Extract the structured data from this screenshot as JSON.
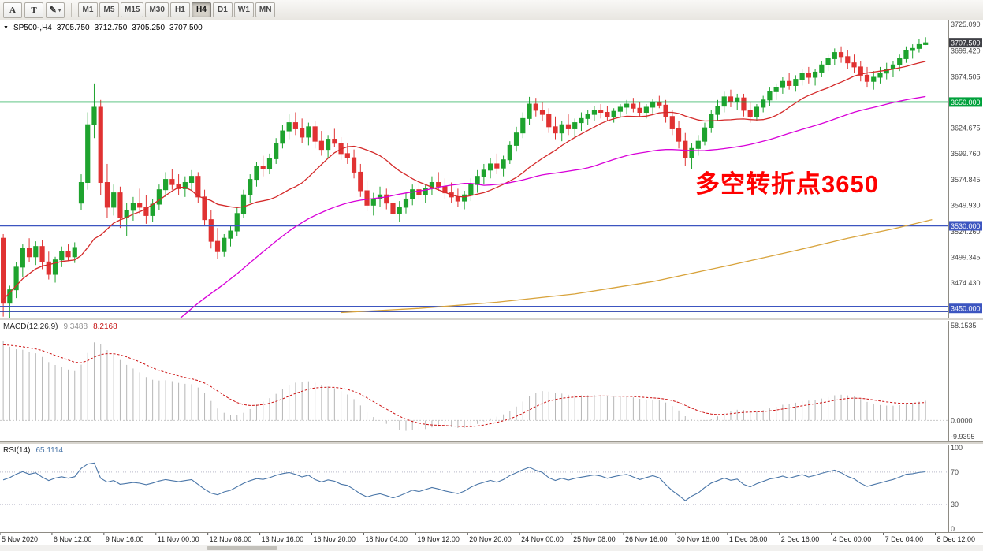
{
  "toolbar": {
    "tools": [
      {
        "label": "A"
      },
      {
        "label": "T"
      },
      {
        "label": "✎"
      }
    ],
    "crayon_caret": "▾",
    "timeframes": [
      "M1",
      "M5",
      "M15",
      "M30",
      "H1",
      "H4",
      "D1",
      "W1",
      "MN"
    ],
    "active_timeframe": "H4"
  },
  "symbol_info": {
    "collapse_icon": "▼",
    "symbol": "SP500-,H4",
    "open": "3705.750",
    "high": "3712.750",
    "low": "3705.250",
    "close": "3707.500"
  },
  "annotation": {
    "text": "多空转折点3650",
    "color": "#ff0000"
  },
  "indicators": {
    "macd": {
      "label": "MACD(12,26,9)",
      "value": "9.3488",
      "signal": "8.2168",
      "axis": [
        "58.1535",
        "0.0000",
        "-9.9395"
      ]
    },
    "rsi": {
      "label": "RSI(14)",
      "value": "65.1114",
      "axis": [
        "100",
        "70",
        "30",
        "0"
      ],
      "levels": [
        70,
        30
      ]
    }
  },
  "price_axis": {
    "labels": [
      {
        "text": "3725.090",
        "value": 3725.09
      },
      {
        "text": "3699.420",
        "value": 3699.42
      },
      {
        "text": "3674.505",
        "value": 3674.505
      },
      {
        "text": "3624.675",
        "value": 3624.675
      },
      {
        "text": "3599.760",
        "value": 3599.76
      },
      {
        "text": "3574.845",
        "value": 3574.845
      },
      {
        "text": "3549.930",
        "value": 3549.93
      },
      {
        "text": "3524.260",
        "value": 3524.26
      },
      {
        "text": "3499.345",
        "value": 3499.345
      },
      {
        "text": "3474.430",
        "value": 3474.43
      }
    ],
    "tags": [
      {
        "text": "3707.500",
        "value": 3707.5,
        "bg": "#3f4046"
      },
      {
        "text": "3650.000",
        "value": 3650,
        "bg": "#00a13c"
      },
      {
        "text": "3530.000",
        "value": 3530,
        "bg": "#3c55c0"
      },
      {
        "text": "3450.000",
        "value": 3450,
        "bg": "#3c55c0"
      }
    ]
  },
  "chart_data": {
    "type": "candlestick",
    "title": "SP500- H4",
    "symbol": "SP500-",
    "timeframe": "H4",
    "y_range": [
      3441,
      3729
    ],
    "visible_slots": 146,
    "hlines": [
      {
        "value": 3650,
        "color": "#00a13c",
        "width": 1.6
      },
      {
        "value": 3530,
        "color": "#3c55c0",
        "width": 1.4
      },
      {
        "value": 3452,
        "color": "#3c55c0",
        "width": 1.2
      },
      {
        "value": 3447,
        "color": "#2a3fa8",
        "width": 1.4
      }
    ],
    "time_ticks": [
      {
        "i": 0,
        "label": "5 Nov 2020"
      },
      {
        "i": 8,
        "label": "6 Nov 12:00"
      },
      {
        "i": 16,
        "label": "9 Nov 16:00"
      },
      {
        "i": 24,
        "label": "11 Nov 00:00"
      },
      {
        "i": 32,
        "label": "12 Nov 08:00"
      },
      {
        "i": 40,
        "label": "13 Nov 16:00"
      },
      {
        "i": 48,
        "label": "16 Nov 20:00"
      },
      {
        "i": 56,
        "label": "18 Nov 04:00"
      },
      {
        "i": 64,
        "label": "19 Nov 12:00"
      },
      {
        "i": 72,
        "label": "20 Nov 20:00"
      },
      {
        "i": 80,
        "label": "24 Nov 00:00"
      },
      {
        "i": 88,
        "label": "25 Nov 08:00"
      },
      {
        "i": 96,
        "label": "26 Nov 16:00"
      },
      {
        "i": 104,
        "label": "30 Nov 16:00"
      },
      {
        "i": 112,
        "label": "1 Dec 08:00"
      },
      {
        "i": 120,
        "label": "2 Dec 16:00"
      },
      {
        "i": 128,
        "label": "4 Dec 00:00"
      },
      {
        "i": 136,
        "label": "7 Dec 04:00"
      },
      {
        "i": 144,
        "label": "8 Dec 12:00"
      }
    ],
    "overlays": {
      "ma_fast": {
        "period": 16,
        "color": "#d42a2a"
      },
      "ma_mid": {
        "period": 60,
        "color": "#d800d8"
      },
      "ma_slow": {
        "color": "#d8a33c",
        "points": [
          [
            52,
            3446
          ],
          [
            64,
            3450
          ],
          [
            76,
            3456
          ],
          [
            88,
            3464
          ],
          [
            100,
            3476
          ],
          [
            112,
            3492
          ],
          [
            122,
            3506
          ],
          [
            130,
            3518
          ],
          [
            137,
            3527
          ],
          [
            143,
            3536
          ]
        ]
      }
    },
    "macd_axis": [
      58.1535,
      -9.9395
    ],
    "colors": {
      "up": "#1ea32e",
      "down": "#e03232",
      "ma_fast": "#d42a2a",
      "ma_mid": "#d800d8",
      "ma_slow": "#d8a33c",
      "macd_hist": "#b6b6b6",
      "macd_signal": "#cc1111",
      "rsi_line": "#4a76a8"
    },
    "pre_window_closes": [
      3400,
      3392,
      3384,
      3376,
      3368,
      3360,
      3352,
      3344,
      3336,
      3328,
      3318,
      3308,
      3296,
      3284,
      3272,
      3262,
      3255,
      3250,
      3246,
      3242,
      3240,
      3238,
      3236,
      3235,
      3238,
      3244,
      3252,
      3262,
      3274,
      3288,
      3304,
      3322,
      3342,
      3362,
      3382,
      3402,
      3420,
      3436,
      3450,
      3462,
      3472,
      3481,
      3489,
      3496,
      3502,
      3506,
      3510,
      3513
    ],
    "candles": [
      [
        3518,
        3522,
        3442,
        3455
      ],
      [
        3455,
        3472,
        3438,
        3468
      ],
      [
        3468,
        3495,
        3460,
        3490
      ],
      [
        3490,
        3512,
        3480,
        3508
      ],
      [
        3508,
        3518,
        3495,
        3500
      ],
      [
        3500,
        3515,
        3492,
        3510
      ],
      [
        3510,
        3516,
        3488,
        3495
      ],
      [
        3495,
        3505,
        3478,
        3483
      ],
      [
        3483,
        3500,
        3475,
        3497
      ],
      [
        3497,
        3510,
        3490,
        3505
      ],
      [
        3505,
        3512,
        3496,
        3500
      ],
      [
        3500,
        3514,
        3494,
        3509
      ],
      [
        3552,
        3580,
        3545,
        3572
      ],
      [
        3572,
        3640,
        3565,
        3628
      ],
      [
        3628,
        3668,
        3615,
        3645
      ],
      [
        3645,
        3652,
        3560,
        3572
      ],
      [
        3572,
        3590,
        3538,
        3548
      ],
      [
        3548,
        3570,
        3540,
        3562
      ],
      [
        3562,
        3568,
        3528,
        3538
      ],
      [
        3538,
        3552,
        3520,
        3545
      ],
      [
        3545,
        3558,
        3535,
        3552
      ],
      [
        3552,
        3566,
        3542,
        3548
      ],
      [
        3548,
        3560,
        3532,
        3540
      ],
      [
        3540,
        3556,
        3534,
        3551
      ],
      [
        3551,
        3570,
        3545,
        3565
      ],
      [
        3565,
        3582,
        3558,
        3575
      ],
      [
        3575,
        3585,
        3565,
        3570
      ],
      [
        3570,
        3580,
        3560,
        3566
      ],
      [
        3566,
        3578,
        3558,
        3572
      ],
      [
        3572,
        3584,
        3564,
        3578
      ],
      [
        3578,
        3582,
        3552,
        3558
      ],
      [
        3558,
        3565,
        3530,
        3536
      ],
      [
        3536,
        3545,
        3508,
        3515
      ],
      [
        3515,
        3528,
        3498,
        3505
      ],
      [
        3505,
        3522,
        3500,
        3518
      ],
      [
        3518,
        3530,
        3510,
        3525
      ],
      [
        3525,
        3548,
        3520,
        3542
      ],
      [
        3542,
        3565,
        3538,
        3560
      ],
      [
        3560,
        3580,
        3552,
        3575
      ],
      [
        3575,
        3592,
        3568,
        3588
      ],
      [
        3588,
        3598,
        3578,
        3585
      ],
      [
        3585,
        3600,
        3580,
        3595
      ],
      [
        3595,
        3615,
        3590,
        3610
      ],
      [
        3610,
        3628,
        3605,
        3622
      ],
      [
        3622,
        3638,
        3614,
        3630
      ],
      [
        3630,
        3640,
        3618,
        3624
      ],
      [
        3624,
        3634,
        3610,
        3616
      ],
      [
        3616,
        3630,
        3608,
        3626
      ],
      [
        3626,
        3632,
        3605,
        3612
      ],
      [
        3612,
        3622,
        3598,
        3604
      ],
      [
        3604,
        3618,
        3596,
        3614
      ],
      [
        3614,
        3624,
        3606,
        3610
      ],
      [
        3610,
        3616,
        3594,
        3600
      ],
      [
        3600,
        3610,
        3590,
        3596
      ],
      [
        3596,
        3604,
        3576,
        3582
      ],
      [
        3582,
        3590,
        3558,
        3564
      ],
      [
        3564,
        3574,
        3544,
        3550
      ],
      [
        3550,
        3562,
        3540,
        3556
      ],
      [
        3556,
        3568,
        3548,
        3560
      ],
      [
        3560,
        3566,
        3546,
        3552
      ],
      [
        3552,
        3560,
        3536,
        3542
      ],
      [
        3542,
        3554,
        3534,
        3548
      ],
      [
        3548,
        3562,
        3542,
        3556
      ],
      [
        3556,
        3570,
        3550,
        3565
      ],
      [
        3565,
        3574,
        3556,
        3560
      ],
      [
        3560,
        3570,
        3552,
        3566
      ],
      [
        3566,
        3578,
        3560,
        3572
      ],
      [
        3572,
        3582,
        3564,
        3568
      ],
      [
        3568,
        3576,
        3556,
        3562
      ],
      [
        3562,
        3572,
        3552,
        3558
      ],
      [
        3558,
        3566,
        3548,
        3554
      ],
      [
        3554,
        3564,
        3546,
        3560
      ],
      [
        3560,
        3576,
        3554,
        3570
      ],
      [
        3570,
        3584,
        3562,
        3578
      ],
      [
        3578,
        3590,
        3570,
        3584
      ],
      [
        3584,
        3596,
        3576,
        3590
      ],
      [
        3590,
        3600,
        3580,
        3586
      ],
      [
        3586,
        3598,
        3578,
        3594
      ],
      [
        3594,
        3612,
        3590,
        3608
      ],
      [
        3608,
        3626,
        3602,
        3620
      ],
      [
        3620,
        3640,
        3615,
        3634
      ],
      [
        3634,
        3655,
        3628,
        3648
      ],
      [
        3648,
        3654,
        3636,
        3642
      ],
      [
        3642,
        3650,
        3632,
        3638
      ],
      [
        3638,
        3644,
        3620,
        3626
      ],
      [
        3626,
        3636,
        3614,
        3620
      ],
      [
        3620,
        3632,
        3612,
        3628
      ],
      [
        3628,
        3638,
        3618,
        3624
      ],
      [
        3624,
        3634,
        3616,
        3630
      ],
      [
        3630,
        3640,
        3622,
        3634
      ],
      [
        3634,
        3642,
        3628,
        3638
      ],
      [
        3638,
        3646,
        3632,
        3642
      ],
      [
        3642,
        3648,
        3634,
        3640
      ],
      [
        3640,
        3646,
        3632,
        3636
      ],
      [
        3636,
        3644,
        3630,
        3641
      ],
      [
        3641,
        3648,
        3635,
        3645
      ],
      [
        3645,
        3652,
        3638,
        3648
      ],
      [
        3648,
        3654,
        3640,
        3644
      ],
      [
        3644,
        3650,
        3636,
        3640
      ],
      [
        3640,
        3648,
        3634,
        3645
      ],
      [
        3645,
        3653,
        3639,
        3650
      ],
      [
        3650,
        3656,
        3644,
        3647
      ],
      [
        3647,
        3652,
        3630,
        3636
      ],
      [
        3636,
        3642,
        3618,
        3624
      ],
      [
        3624,
        3632,
        3605,
        3612
      ],
      [
        3612,
        3620,
        3588,
        3596
      ],
      [
        3596,
        3610,
        3585,
        3605
      ],
      [
        3605,
        3618,
        3598,
        3612
      ],
      [
        3612,
        3630,
        3608,
        3625
      ],
      [
        3625,
        3642,
        3620,
        3638
      ],
      [
        3638,
        3652,
        3632,
        3646
      ],
      [
        3646,
        3660,
        3640,
        3655
      ],
      [
        3655,
        3662,
        3645,
        3650
      ],
      [
        3650,
        3658,
        3642,
        3654
      ],
      [
        3654,
        3658,
        3636,
        3642
      ],
      [
        3642,
        3650,
        3630,
        3636
      ],
      [
        3636,
        3648,
        3632,
        3645
      ],
      [
        3645,
        3656,
        3640,
        3652
      ],
      [
        3652,
        3664,
        3646,
        3660
      ],
      [
        3660,
        3668,
        3652,
        3664
      ],
      [
        3664,
        3674,
        3658,
        3670
      ],
      [
        3670,
        3678,
        3662,
        3666
      ],
      [
        3666,
        3676,
        3660,
        3672
      ],
      [
        3672,
        3682,
        3666,
        3678
      ],
      [
        3678,
        3684,
        3668,
        3674
      ],
      [
        3674,
        3682,
        3666,
        3679
      ],
      [
        3679,
        3690,
        3674,
        3686
      ],
      [
        3686,
        3696,
        3680,
        3692
      ],
      [
        3692,
        3702,
        3686,
        3698
      ],
      [
        3698,
        3704,
        3688,
        3694
      ],
      [
        3694,
        3700,
        3682,
        3688
      ],
      [
        3688,
        3696,
        3678,
        3684
      ],
      [
        3684,
        3690,
        3670,
        3676
      ],
      [
        3676,
        3684,
        3664,
        3670
      ],
      [
        3670,
        3680,
        3662,
        3674
      ],
      [
        3674,
        3684,
        3668,
        3678
      ],
      [
        3678,
        3688,
        3672,
        3682
      ],
      [
        3682,
        3690,
        3674,
        3686
      ],
      [
        3686,
        3696,
        3680,
        3692
      ],
      [
        3692,
        3704,
        3688,
        3700
      ],
      [
        3700,
        3706,
        3692,
        3702
      ],
      [
        3702,
        3711,
        3698,
        3705.75
      ],
      [
        3705.75,
        3712.75,
        3705.25,
        3707.5
      ]
    ]
  }
}
